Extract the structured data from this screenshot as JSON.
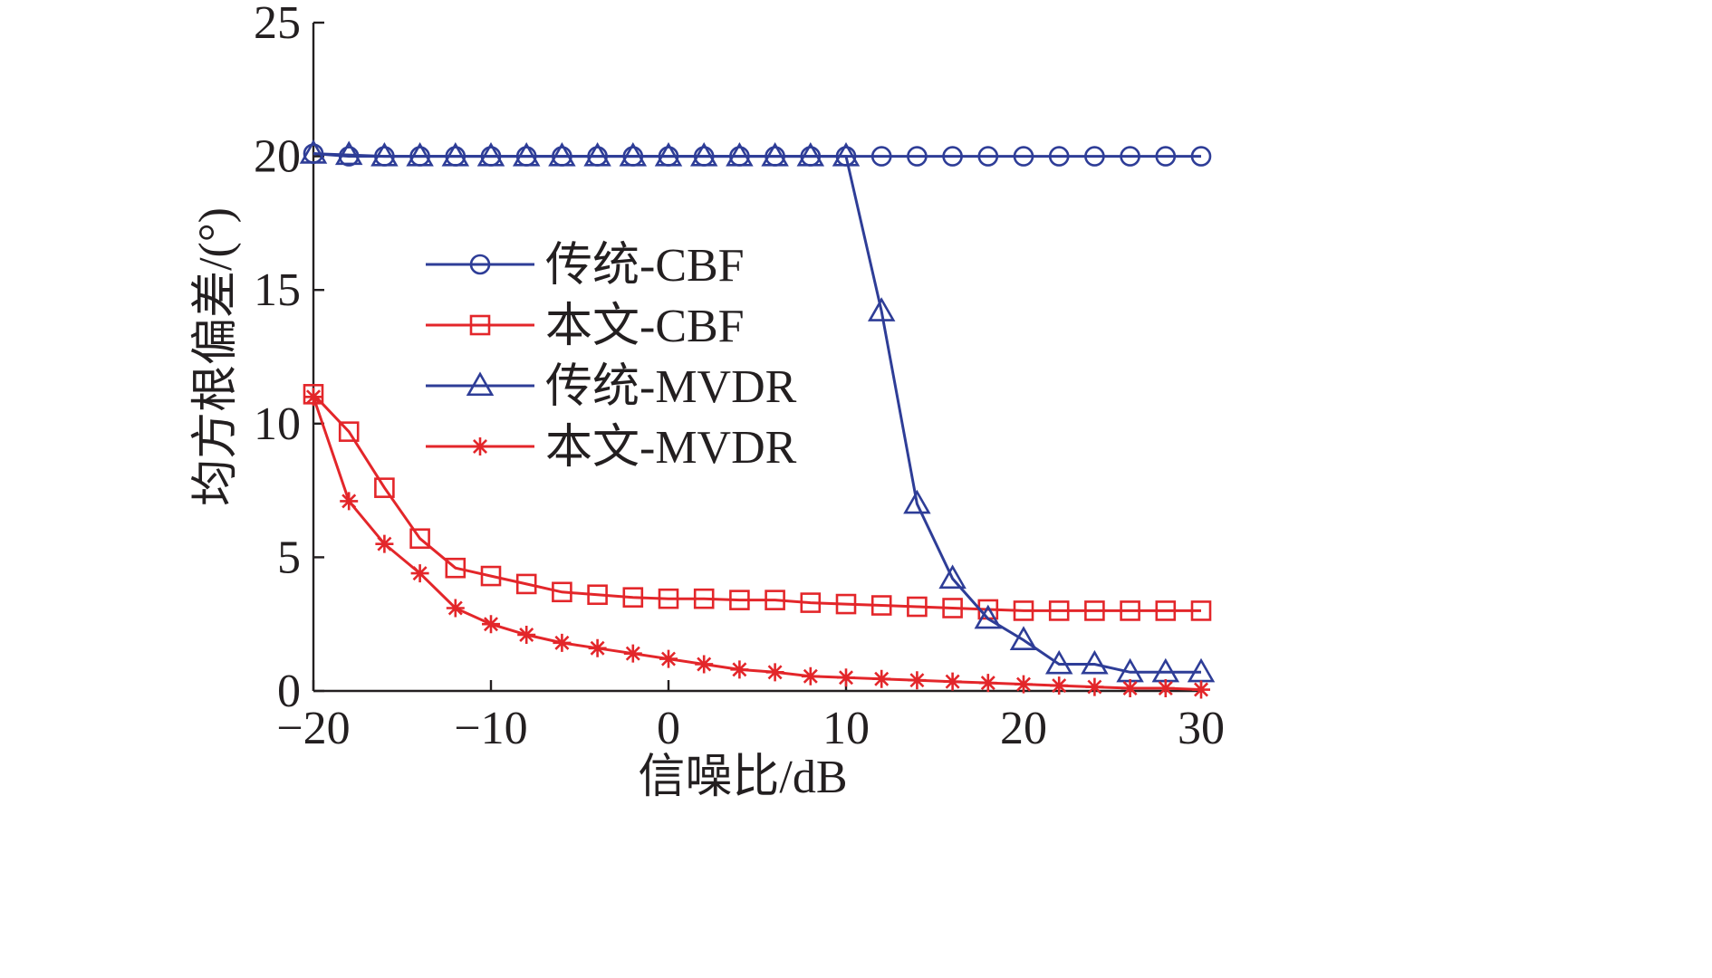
{
  "chart_data": {
    "type": "line",
    "title": "",
    "xlabel": "信噪比/dB",
    "ylabel": "均方根偏差/(°)",
    "xlim": [
      -20,
      30
    ],
    "ylim": [
      0,
      25
    ],
    "grid": false,
    "xticks": [
      -20,
      -10,
      0,
      10,
      20,
      30
    ],
    "xtick_labels": [
      "−20",
      "−10",
      "0",
      "10",
      "20",
      "30"
    ],
    "yticks": [
      0,
      5,
      10,
      15,
      20,
      25
    ],
    "ytick_labels": [
      "0",
      "5",
      "10",
      "15",
      "20",
      "25"
    ],
    "legend_position": "center-left",
    "x": [
      -20,
      -18,
      -16,
      -14,
      -12,
      -10,
      -8,
      -6,
      -4,
      -2,
      0,
      2,
      4,
      6,
      8,
      10,
      12,
      14,
      16,
      18,
      20,
      22,
      24,
      26,
      28,
      30
    ],
    "series": [
      {
        "name": "传统-CBF",
        "color": "#2e3d97",
        "marker": "circle",
        "values": [
          20.1,
          20.0,
          20.0,
          20.0,
          20.0,
          20.0,
          20.0,
          20.0,
          20.0,
          20.0,
          20.0,
          20.0,
          20.0,
          20.0,
          20.0,
          20.0,
          20.0,
          20.0,
          20.0,
          20.0,
          20.0,
          20.0,
          20.0,
          20.0,
          20.0,
          20.0
        ]
      },
      {
        "name": "本文-CBF",
        "color": "#e3262a",
        "marker": "square",
        "values": [
          11.1,
          9.7,
          7.6,
          5.7,
          4.6,
          4.3,
          4.0,
          3.7,
          3.6,
          3.5,
          3.45,
          3.45,
          3.4,
          3.4,
          3.3,
          3.25,
          3.2,
          3.15,
          3.1,
          3.05,
          3.0,
          3.0,
          3.0,
          3.0,
          3.0,
          3.0
        ]
      },
      {
        "name": "传统-MVDR",
        "color": "#2e3d97",
        "marker": "triangle",
        "values": [
          20.1,
          20.05,
          20.0,
          20.0,
          20.0,
          20.0,
          20.0,
          20.0,
          20.0,
          20.0,
          20.0,
          20.0,
          20.0,
          20.0,
          20.0,
          20.0,
          14.2,
          7.0,
          4.2,
          2.7,
          1.9,
          1.0,
          1.0,
          0.7,
          0.7,
          0.7
        ]
      },
      {
        "name": "本文-MVDR",
        "color": "#e3262a",
        "marker": "star",
        "values": [
          11.0,
          7.1,
          5.5,
          4.4,
          3.1,
          2.5,
          2.1,
          1.8,
          1.6,
          1.4,
          1.2,
          1.0,
          0.8,
          0.7,
          0.55,
          0.5,
          0.45,
          0.4,
          0.35,
          0.3,
          0.25,
          0.2,
          0.15,
          0.1,
          0.1,
          0.05
        ]
      }
    ]
  }
}
